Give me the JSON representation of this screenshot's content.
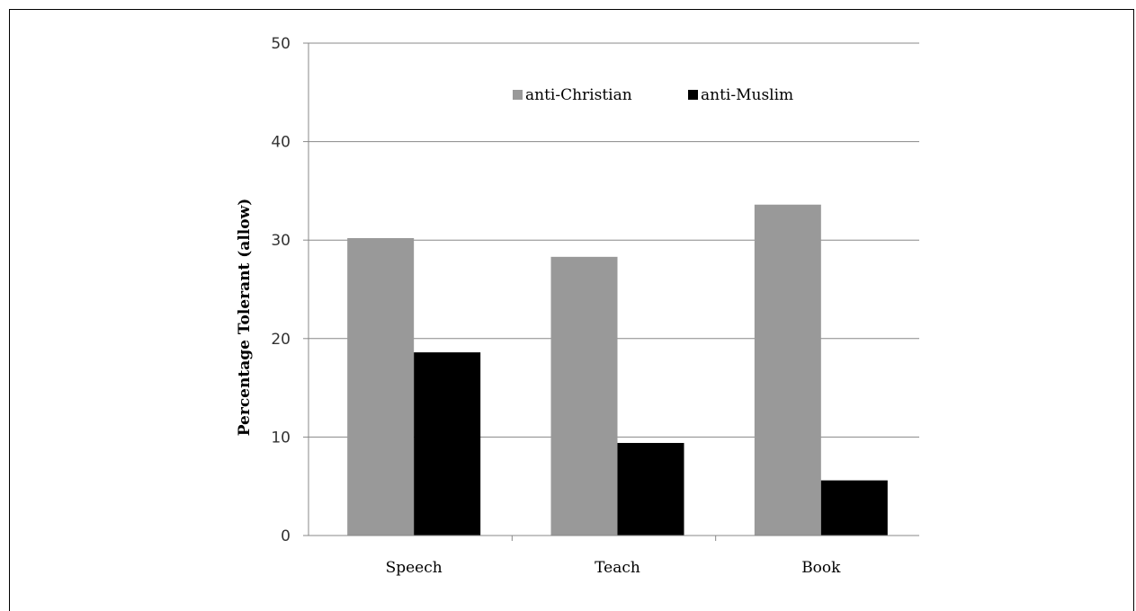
{
  "chart_data": {
    "type": "bar",
    "categories": [
      "Speech",
      "Teach",
      "Book"
    ],
    "series": [
      {
        "name": "anti-Christian",
        "color": "#999999",
        "values": [
          30.2,
          28.3,
          33.6
        ]
      },
      {
        "name": "anti-Muslim",
        "color": "#000000",
        "values": [
          18.6,
          9.4,
          5.6
        ]
      }
    ],
    "ylabel": "Percentage Tolerant (allow)",
    "xlabel": "",
    "title": "",
    "ylim": [
      0,
      50
    ],
    "yticks": [
      0,
      10,
      20,
      30,
      40,
      50
    ],
    "grid": true,
    "legend_position": "top-center"
  }
}
